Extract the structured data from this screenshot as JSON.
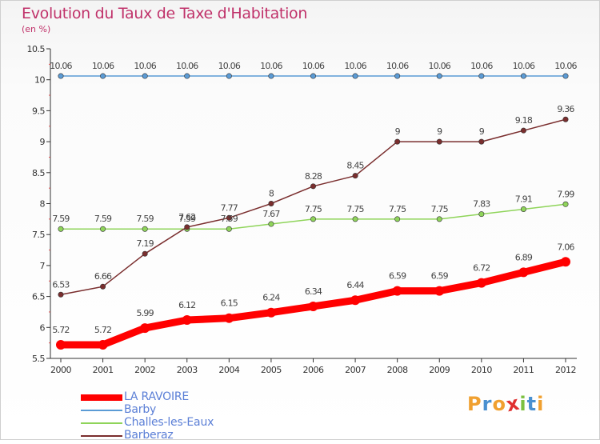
{
  "title": "Evolution du Taux de Taxe d'Habitation",
  "subtitle": "(en %)",
  "logo": {
    "text": "Proxiti",
    "letters": [
      "P",
      "r",
      "o",
      "x",
      "i",
      "t",
      "i"
    ],
    "colors": [
      "#f0a030",
      "#4a90d0",
      "#f0a030",
      "#e03030",
      "#7cc040",
      "#4a90d0",
      "#f0a030"
    ]
  },
  "chart_data": {
    "type": "line",
    "title": "Evolution du Taux de Taxe d'Habitation",
    "ylabel": "(en %)",
    "xlabel": "",
    "x": [
      "2000",
      "2001",
      "2002",
      "2003",
      "2004",
      "2005",
      "2006",
      "2007",
      "2008",
      "2009",
      "2010",
      "2011",
      "2012"
    ],
    "ylim": [
      5.5,
      10.5
    ],
    "yticks": [
      "5.5",
      "6",
      "6.5",
      "7",
      "7.5",
      "8",
      "8.5",
      "9",
      "9.5",
      "10",
      "10.5"
    ],
    "grid": false,
    "legend_position": "bottom-left",
    "series": [
      {
        "name": "LA RAVOIRE",
        "color": "#ff0000",
        "values": [
          5.72,
          5.72,
          5.99,
          6.12,
          6.15,
          6.24,
          6.34,
          6.44,
          6.59,
          6.59,
          6.72,
          6.89,
          7.06
        ],
        "labels": [
          "5.72",
          "5.72",
          "5.99",
          "6.12",
          "6.15",
          "6.24",
          "6.34",
          "6.44",
          "6.59",
          "6.59",
          "6.72",
          "6.89",
          "7.06"
        ]
      },
      {
        "name": "Barby",
        "color": "#5b9bd5",
        "values": [
          10.06,
          10.06,
          10.06,
          10.06,
          10.06,
          10.06,
          10.06,
          10.06,
          10.06,
          10.06,
          10.06,
          10.06,
          10.06
        ],
        "labels": [
          "10.06",
          "10.06",
          "10.06",
          "10.06",
          "10.06",
          "10.06",
          "10.06",
          "10.06",
          "10.06",
          "10.06",
          "10.06",
          "10.06",
          "10.06"
        ]
      },
      {
        "name": "Challes-les-Eaux",
        "color": "#8fd45a",
        "values": [
          7.59,
          7.59,
          7.59,
          7.59,
          7.59,
          7.67,
          7.75,
          7.75,
          7.75,
          7.75,
          7.83,
          7.91,
          7.99
        ],
        "labels": [
          "7.59",
          "7.59",
          "7.59",
          "7.59",
          "7.59",
          "7.67",
          "7.75",
          "7.75",
          "7.75",
          "7.75",
          "7.83",
          "7.91",
          "7.99"
        ]
      },
      {
        "name": "Barberaz",
        "color": "#7a2e2e",
        "values": [
          6.53,
          6.66,
          7.19,
          7.62,
          7.77,
          8,
          8.28,
          8.45,
          9,
          9,
          9,
          9.18,
          9.36
        ],
        "labels": [
          "6.53",
          "6.66",
          "7.19",
          "7.62",
          "7.77",
          "8",
          "8.28",
          "8.45",
          "9",
          "9",
          "9",
          "9.18",
          "9.36"
        ]
      }
    ]
  }
}
